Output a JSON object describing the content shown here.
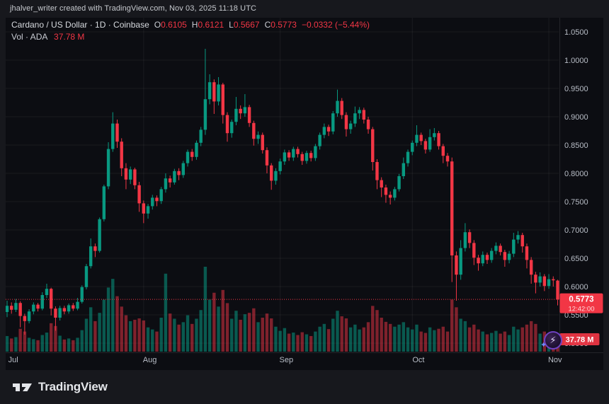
{
  "attribution": "jhalver_writer created with TradingView.com, Nov 03, 2025 11:18 UTC",
  "legend": {
    "title": "Cardano / US Dollar · 1D · Coinbase",
    "ohlc": {
      "o_label": "O",
      "o": "0.6105",
      "h_label": "H",
      "h": "0.6121",
      "l_label": "L",
      "l": "0.5667",
      "c_label": "C",
      "c": "0.5773",
      "change": "−0.0332 (−5.44%)"
    },
    "volume_label": "Vol · ADA",
    "volume_value": "37.78 M"
  },
  "badges": {
    "price": "0.5773",
    "countdown": "12:42:00",
    "volume": "37.78 M"
  },
  "footer": {
    "brand": "TradingView"
  },
  "colors": {
    "up": "#089981",
    "down": "#f23645",
    "vol_up": "rgba(8,153,129,0.55)",
    "vol_down": "rgba(242,54,69,0.5)",
    "grid": "rgba(255,255,255,0.06)",
    "separator": "rgba(255,255,255,0.1)",
    "text": "#b8bdc6",
    "badge_text": "#ffffff",
    "bg_panel": "#0c0d12",
    "bg_frame": "#17181d"
  },
  "chart_data": {
    "type": "candlestick",
    "title": "Cardano / US Dollar",
    "interval": "1D",
    "exchange": "Coinbase",
    "last_price": 0.5773,
    "y_axis": {
      "min": 0.5,
      "max": 1.05,
      "ticks": [
        "1.0500",
        "1.0000",
        "0.9500",
        "0.9000",
        "0.8500",
        "0.8000",
        "0.7500",
        "0.7000",
        "0.6500",
        "0.6000",
        "0.5500",
        "0.5000"
      ]
    },
    "x_axis": {
      "month_ticks": [
        {
          "label": "Jul",
          "i": 0,
          "grid": false
        },
        {
          "label": "Aug",
          "i": 31,
          "grid": true
        },
        {
          "label": "Sep",
          "i": 62,
          "grid": true
        },
        {
          "label": "Oct",
          "i": 92,
          "grid": true
        },
        {
          "label": "Nov",
          "i": 123,
          "grid": true
        }
      ]
    },
    "candles": {
      "o": [
        0.555,
        0.566,
        0.559,
        0.571,
        0.548,
        0.539,
        0.556,
        0.568,
        0.561,
        0.585,
        0.596,
        0.561,
        0.545,
        0.562,
        0.556,
        0.567,
        0.561,
        0.573,
        0.599,
        0.636,
        0.671,
        0.663,
        0.719,
        0.777,
        0.843,
        0.888,
        0.856,
        0.809,
        0.789,
        0.807,
        0.779,
        0.747,
        0.729,
        0.742,
        0.757,
        0.751,
        0.772,
        0.791,
        0.784,
        0.804,
        0.797,
        0.818,
        0.838,
        0.829,
        0.854,
        0.877,
        0.931,
        0.961,
        0.927,
        0.957,
        0.903,
        0.871,
        0.891,
        0.914,
        0.906,
        0.917,
        0.889,
        0.861,
        0.868,
        0.841,
        0.814,
        0.787,
        0.804,
        0.821,
        0.837,
        0.828,
        0.843,
        0.834,
        0.822,
        0.836,
        0.827,
        0.848,
        0.868,
        0.882,
        0.874,
        0.906,
        0.928,
        0.903,
        0.878,
        0.888,
        0.906,
        0.912,
        0.895,
        0.878,
        0.82,
        0.788,
        0.775,
        0.762,
        0.757,
        0.772,
        0.795,
        0.818,
        0.838,
        0.854,
        0.868,
        0.857,
        0.842,
        0.864,
        0.871,
        0.848,
        0.831,
        0.821,
        0.655,
        0.621,
        0.668,
        0.696,
        0.677,
        0.651,
        0.641,
        0.656,
        0.647,
        0.663,
        0.672,
        0.661,
        0.647,
        0.658,
        0.683,
        0.691,
        0.671,
        0.647,
        0.621,
        0.607,
        0.618,
        0.601,
        0.613,
        0.6105
      ],
      "h": [
        0.575,
        0.572,
        0.578,
        0.574,
        0.552,
        0.56,
        0.572,
        0.571,
        0.59,
        0.605,
        0.598,
        0.565,
        0.566,
        0.566,
        0.57,
        0.571,
        0.58,
        0.602,
        0.64,
        0.685,
        0.676,
        0.722,
        0.78,
        0.855,
        0.908,
        0.895,
        0.862,
        0.818,
        0.812,
        0.81,
        0.785,
        0.752,
        0.746,
        0.762,
        0.761,
        0.776,
        0.8,
        0.796,
        0.808,
        0.809,
        0.822,
        0.842,
        0.843,
        0.858,
        0.882,
        1.02,
        0.975,
        0.966,
        0.97,
        0.96,
        0.908,
        0.895,
        0.935,
        0.92,
        0.94,
        0.921,
        0.893,
        0.874,
        0.872,
        0.846,
        0.818,
        0.809,
        0.826,
        0.842,
        0.841,
        0.847,
        0.847,
        0.838,
        0.84,
        0.84,
        0.852,
        0.872,
        0.888,
        0.886,
        0.91,
        0.948,
        0.933,
        0.908,
        0.893,
        0.918,
        0.917,
        0.916,
        0.9,
        0.882,
        0.825,
        0.793,
        0.78,
        0.768,
        0.776,
        0.799,
        0.828,
        0.842,
        0.858,
        0.885,
        0.872,
        0.861,
        0.878,
        0.88,
        0.875,
        0.852,
        0.836,
        0.828,
        0.662,
        0.682,
        0.712,
        0.701,
        0.682,
        0.656,
        0.662,
        0.66,
        0.668,
        0.678,
        0.676,
        0.665,
        0.663,
        0.695,
        0.698,
        0.695,
        0.676,
        0.652,
        0.626,
        0.625,
        0.622,
        0.622,
        0.618,
        0.6121
      ],
      "l": [
        0.546,
        0.552,
        0.555,
        0.528,
        0.515,
        0.535,
        0.551,
        0.556,
        0.558,
        0.58,
        0.549,
        0.522,
        0.54,
        0.551,
        0.552,
        0.557,
        0.558,
        0.57,
        0.595,
        0.632,
        0.652,
        0.66,
        0.715,
        0.772,
        0.838,
        0.845,
        0.795,
        0.772,
        0.781,
        0.772,
        0.732,
        0.712,
        0.72,
        0.736,
        0.742,
        0.746,
        0.766,
        0.775,
        0.78,
        0.788,
        0.792,
        0.812,
        0.822,
        0.824,
        0.848,
        0.868,
        0.922,
        0.905,
        0.92,
        0.888,
        0.856,
        0.863,
        0.885,
        0.896,
        0.9,
        0.882,
        0.849,
        0.852,
        0.835,
        0.8,
        0.771,
        0.78,
        0.798,
        0.815,
        0.822,
        0.822,
        0.828,
        0.815,
        0.817,
        0.821,
        0.822,
        0.842,
        0.862,
        0.866,
        0.869,
        0.9,
        0.896,
        0.865,
        0.87,
        0.882,
        0.896,
        0.888,
        0.87,
        0.805,
        0.772,
        0.758,
        0.748,
        0.745,
        0.752,
        0.768,
        0.79,
        0.812,
        0.832,
        0.848,
        0.85,
        0.835,
        0.838,
        0.858,
        0.842,
        0.818,
        0.812,
        0.608,
        0.575,
        0.612,
        0.662,
        0.668,
        0.638,
        0.628,
        0.636,
        0.64,
        0.642,
        0.657,
        0.655,
        0.635,
        0.641,
        0.652,
        0.676,
        0.66,
        0.632,
        0.605,
        0.588,
        0.6,
        0.592,
        0.596,
        0.6,
        0.5667
      ],
      "c": [
        0.566,
        0.559,
        0.571,
        0.548,
        0.539,
        0.556,
        0.568,
        0.561,
        0.585,
        0.596,
        0.561,
        0.545,
        0.562,
        0.556,
        0.567,
        0.561,
        0.573,
        0.599,
        0.636,
        0.671,
        0.663,
        0.719,
        0.777,
        0.843,
        0.888,
        0.856,
        0.809,
        0.789,
        0.807,
        0.779,
        0.747,
        0.729,
        0.742,
        0.757,
        0.751,
        0.772,
        0.791,
        0.784,
        0.804,
        0.797,
        0.818,
        0.838,
        0.829,
        0.854,
        0.877,
        0.931,
        0.961,
        0.927,
        0.957,
        0.903,
        0.871,
        0.891,
        0.914,
        0.906,
        0.917,
        0.889,
        0.861,
        0.868,
        0.841,
        0.814,
        0.787,
        0.804,
        0.821,
        0.837,
        0.828,
        0.843,
        0.834,
        0.822,
        0.836,
        0.827,
        0.848,
        0.868,
        0.882,
        0.874,
        0.906,
        0.928,
        0.903,
        0.878,
        0.888,
        0.906,
        0.912,
        0.895,
        0.878,
        0.82,
        0.788,
        0.775,
        0.762,
        0.757,
        0.772,
        0.795,
        0.818,
        0.838,
        0.854,
        0.868,
        0.857,
        0.842,
        0.864,
        0.871,
        0.848,
        0.831,
        0.821,
        0.655,
        0.621,
        0.668,
        0.696,
        0.677,
        0.651,
        0.641,
        0.656,
        0.647,
        0.663,
        0.672,
        0.661,
        0.647,
        0.658,
        0.683,
        0.691,
        0.671,
        0.647,
        0.621,
        0.607,
        0.618,
        0.601,
        0.613,
        0.611,
        0.5773
      ],
      "v": [
        45,
        38,
        42,
        66,
        58,
        40,
        36,
        33,
        48,
        55,
        82,
        74,
        46,
        35,
        38,
        33,
        40,
        62,
        95,
        128,
        88,
        112,
        150,
        185,
        210,
        160,
        130,
        105,
        88,
        92,
        96,
        90,
        70,
        64,
        58,
        98,
        225,
        110,
        95,
        78,
        85,
        105,
        80,
        95,
        120,
        245,
        150,
        170,
        130,
        178,
        140,
        95,
        118,
        92,
        108,
        112,
        125,
        85,
        98,
        110,
        96,
        72,
        60,
        68,
        52,
        55,
        48,
        56,
        50,
        45,
        58,
        72,
        80,
        65,
        95,
        118,
        102,
        96,
        70,
        78,
        64,
        70,
        85,
        132,
        120,
        98,
        86,
        80,
        72,
        78,
        85,
        70,
        64,
        78,
        58,
        54,
        70,
        62,
        66,
        72,
        58,
        150,
        128,
        95,
        88,
        70,
        78,
        64,
        58,
        50,
        54,
        60,
        52,
        58,
        48,
        72,
        64,
        70,
        78,
        88,
        80,
        52,
        58,
        44,
        40,
        37.78
      ]
    }
  }
}
